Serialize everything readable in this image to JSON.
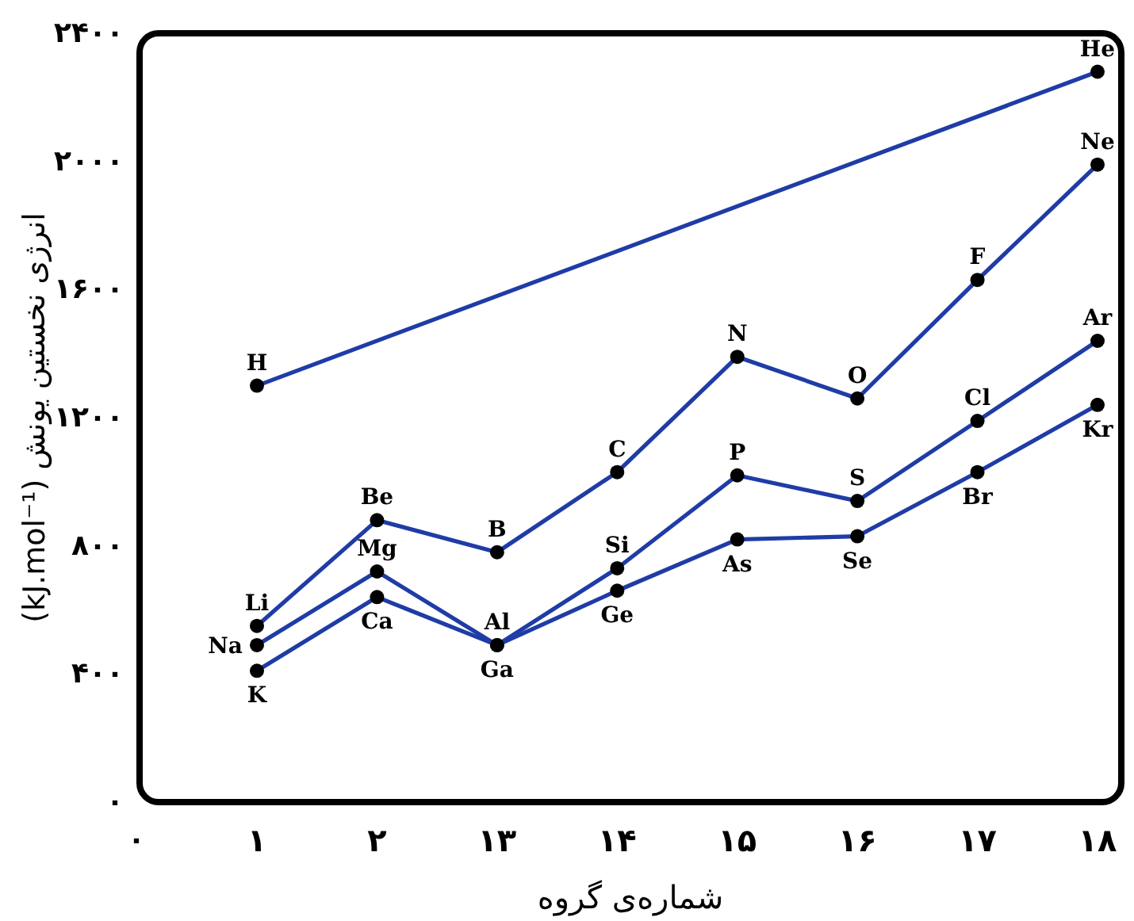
{
  "chart_data": {
    "type": "line",
    "xlabel": "شماره‌ی گروه",
    "ylabel": "(kJ.mol⁻¹) انرژی نخستین یونش",
    "categories": [
      "۱",
      "۲",
      "۱۳",
      "۱۴",
      "۱۵",
      "۱۶",
      "۱۷",
      "۱۸"
    ],
    "ylim": [
      0,
      2400
    ],
    "yticks": [
      {
        "value": 0,
        "label": "۰"
      },
      {
        "value": 400,
        "label": "۴۰۰"
      },
      {
        "value": 800,
        "label": "۸۰۰"
      },
      {
        "value": 1200,
        "label": "۱۲۰۰"
      },
      {
        "value": 1600,
        "label": "۱۶۰۰"
      },
      {
        "value": 2000,
        "label": "۲۰۰۰"
      },
      {
        "value": 2400,
        "label": "۲۴۰۰"
      }
    ],
    "marker": "circle",
    "grid": false,
    "series": [
      {
        "color": "#1f3ca6",
        "x": [
          "۱",
          "۱۸"
        ],
        "values": [
          1300,
          2280
        ]
      },
      {
        "color": "#1f3ca6",
        "values": [
          550,
          880,
          780,
          1030,
          1390,
          1260,
          1630,
          1990
        ]
      },
      {
        "color": "#1f3ca6",
        "values": [
          490,
          720,
          490,
          730,
          1020,
          940,
          1190,
          1440
        ]
      },
      {
        "color": "#1f3ca6",
        "values": [
          410,
          640,
          490,
          660,
          820,
          830,
          1030,
          1240
        ]
      }
    ],
    "annotations": [
      {
        "text": "H",
        "x": "۱",
        "y": 1300
      },
      {
        "text": "He",
        "x": "۱۸",
        "y": 2280
      },
      {
        "text": "Li",
        "x": "۱",
        "y": 550
      },
      {
        "text": "Be",
        "x": "۲",
        "y": 880
      },
      {
        "text": "B",
        "x": "۱۳",
        "y": 780
      },
      {
        "text": "C",
        "x": "۱۴",
        "y": 1030
      },
      {
        "text": "N",
        "x": "۱۵",
        "y": 1390
      },
      {
        "text": "O",
        "x": "۱۶",
        "y": 1260
      },
      {
        "text": "F",
        "x": "۱۷",
        "y": 1630
      },
      {
        "text": "Ne",
        "x": "۱۸",
        "y": 1990
      },
      {
        "text": "Na",
        "x": "۱",
        "y": 490
      },
      {
        "text": "Mg",
        "x": "۲",
        "y": 720
      },
      {
        "text": "Al",
        "x": "۱۳",
        "y": 490
      },
      {
        "text": "Si",
        "x": "۱۴",
        "y": 730
      },
      {
        "text": "P",
        "x": "۱۵",
        "y": 1020
      },
      {
        "text": "S",
        "x": "۱۶",
        "y": 940
      },
      {
        "text": "Cl",
        "x": "۱۷",
        "y": 1190
      },
      {
        "text": "Ar",
        "x": "۱۸",
        "y": 1440
      },
      {
        "text": "K",
        "x": "۱",
        "y": 410
      },
      {
        "text": "Ca",
        "x": "۲",
        "y": 640
      },
      {
        "text": "Ga",
        "x": "۱۳",
        "y": 490
      },
      {
        "text": "Ge",
        "x": "۱۴",
        "y": 660
      },
      {
        "text": "As",
        "x": "۱۵",
        "y": 820
      },
      {
        "text": "Se",
        "x": "۱۶",
        "y": 830
      },
      {
        "text": "Br",
        "x": "۱۷",
        "y": 1030
      },
      {
        "text": "Kr",
        "x": "۱۸",
        "y": 1240
      },
      "۰"
    ]
  }
}
